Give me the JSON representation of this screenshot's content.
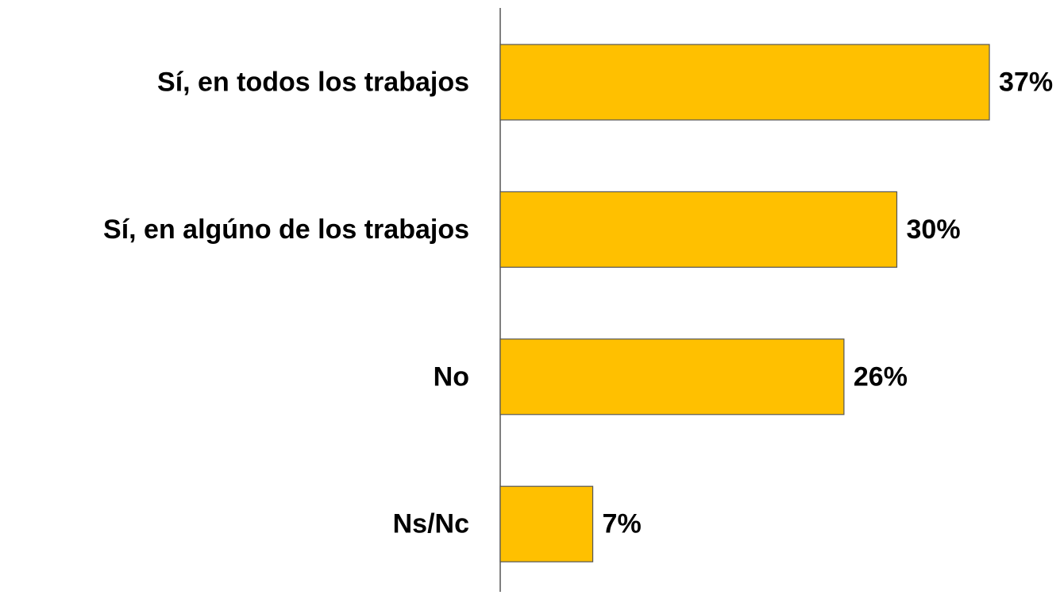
{
  "chart_data": {
    "type": "bar",
    "orientation": "horizontal",
    "categories": [
      "Sí, en todos los trabajos",
      "Sí, en algúno de los trabajos",
      "No",
      "Ns/Nc"
    ],
    "values": [
      37,
      30,
      26,
      7
    ],
    "value_labels": [
      "37%",
      "30%",
      "26%",
      "7%"
    ],
    "color": "#FFC000"
  }
}
